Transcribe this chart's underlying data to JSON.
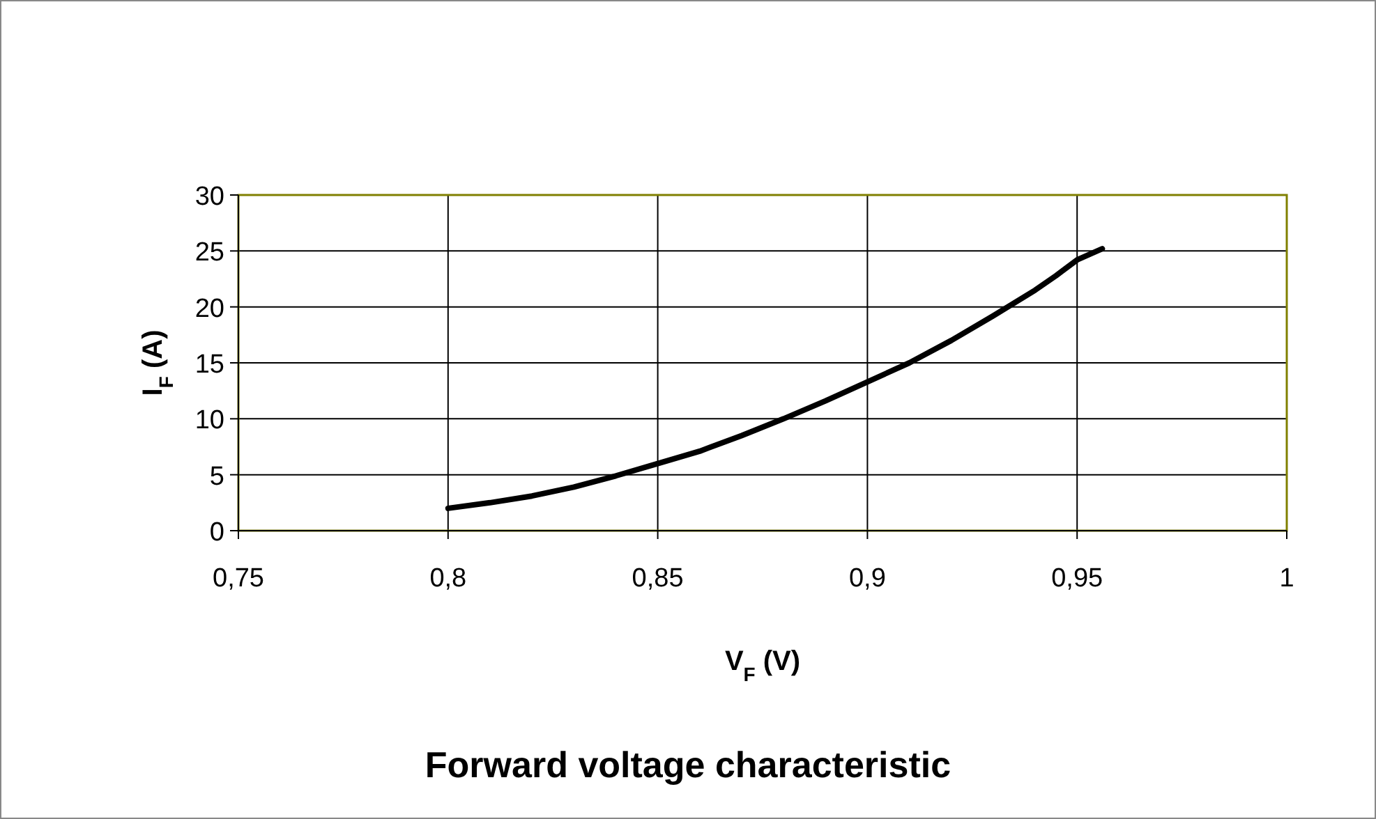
{
  "chart_data": {
    "type": "line",
    "title": "Forward voltage characteristic",
    "xlabel": "V$_{F}$ (V)",
    "ylabel": "I$_{F}$ (A)",
    "x": [
      0.8,
      0.81,
      0.82,
      0.83,
      0.84,
      0.85,
      0.86,
      0.87,
      0.88,
      0.89,
      0.9,
      0.91,
      0.92,
      0.93,
      0.94,
      0.945,
      0.95,
      0.956
    ],
    "series": [
      {
        "color": "#000000",
        "values": [
          2,
          2.5,
          3.1,
          3.9,
          4.9,
          6,
          7.1,
          8.5,
          10,
          11.6,
          13.3,
          15,
          17,
          19.2,
          21.5,
          22.8,
          24.2,
          25.2
        ]
      }
    ],
    "xlim": [
      0.75,
      1
    ],
    "xticks": [
      {
        "value": 0.75,
        "label": "0,75"
      },
      {
        "value": 0.8,
        "label": "0,8"
      },
      {
        "value": 0.85,
        "label": "0,85"
      },
      {
        "value": 0.9,
        "label": "0,9"
      },
      {
        "value": 0.95,
        "label": "0,95"
      },
      1
    ],
    "ylim": [
      0,
      30
    ],
    "yticks": [
      0,
      5,
      10,
      15,
      20,
      25,
      30
    ],
    "grid": true,
    "marker": "none",
    "line_style": "solid"
  }
}
